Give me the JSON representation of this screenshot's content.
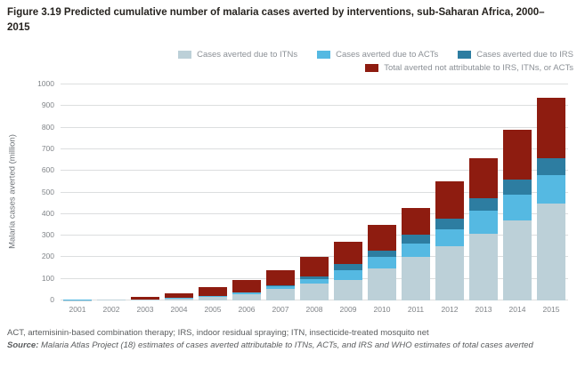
{
  "title": "Figure 3.19 Predicted cumulative number of malaria cases averted by interventions, sub-Saharan Africa, 2000–2015",
  "legend": {
    "row1": [
      {
        "label": "Cases averted due to ITNs",
        "color": "#bcd0d8"
      },
      {
        "label": "Cases averted due to ACTs",
        "color": "#55b9e2"
      },
      {
        "label": "Cases averted due to IRS",
        "color": "#2d7da1"
      }
    ],
    "row2": [
      {
        "label": "Total averted not attributable to IRS, ITNs, or ACTs",
        "color": "#8e1c10"
      }
    ]
  },
  "chart_data": {
    "type": "bar",
    "stacked": true,
    "title": "Predicted cumulative number of malaria cases averted by interventions, sub-Saharan Africa, 2000–2015",
    "ylabel": "Malaria cases averted (million)",
    "xlabel": "",
    "ylim": [
      0,
      1000
    ],
    "ytick_interval": 100,
    "grid": true,
    "legend_position": "top-right",
    "categories": [
      "2001",
      "2002",
      "2003",
      "2004",
      "2005",
      "2006",
      "2007",
      "2008",
      "2009",
      "2010",
      "2011",
      "2012",
      "2013",
      "2014",
      "2015"
    ],
    "series": [
      {
        "name": "Cases averted due to ITNs",
        "color": "#bcd0d8",
        "values": [
          2,
          4,
          4,
          8,
          16,
          28,
          54,
          80,
          95,
          150,
          200,
          250,
          310,
          370,
          450
        ]
      },
      {
        "name": "Cases averted due to ACTs",
        "color": "#55b9e2",
        "values": [
          1,
          1,
          1,
          4,
          4,
          10,
          12,
          18,
          45,
          50,
          65,
          80,
          105,
          120,
          130
        ]
      },
      {
        "name": "Cases averted due to IRS",
        "color": "#2d7da1",
        "values": [
          0,
          0,
          0,
          0,
          0,
          0,
          6,
          12,
          30,
          32,
          40,
          50,
          58,
          68,
          80
        ]
      },
      {
        "name": "Total averted not attributable to IRS, ITNs, or ACTs",
        "color": "#8e1c10",
        "values": [
          0,
          1,
          10,
          23,
          40,
          57,
          68,
          90,
          100,
          118,
          125,
          170,
          187,
          232,
          280
        ]
      }
    ],
    "stack_totals": [
      3,
      6,
      15,
      35,
      60,
      95,
      140,
      200,
      270,
      350,
      430,
      550,
      660,
      790,
      940
    ]
  },
  "footnotes": {
    "abbreviations": "ACT, artemisinin-based combination therapy; IRS, indoor residual spraying; ITN, insecticide-treated mosquito net",
    "source_label": "Source:",
    "source_text": " Malaria Atlas Project (18) estimates of cases averted attributable to ITNs, ACTs, and IRS and WHO estimates of total cases averted"
  }
}
